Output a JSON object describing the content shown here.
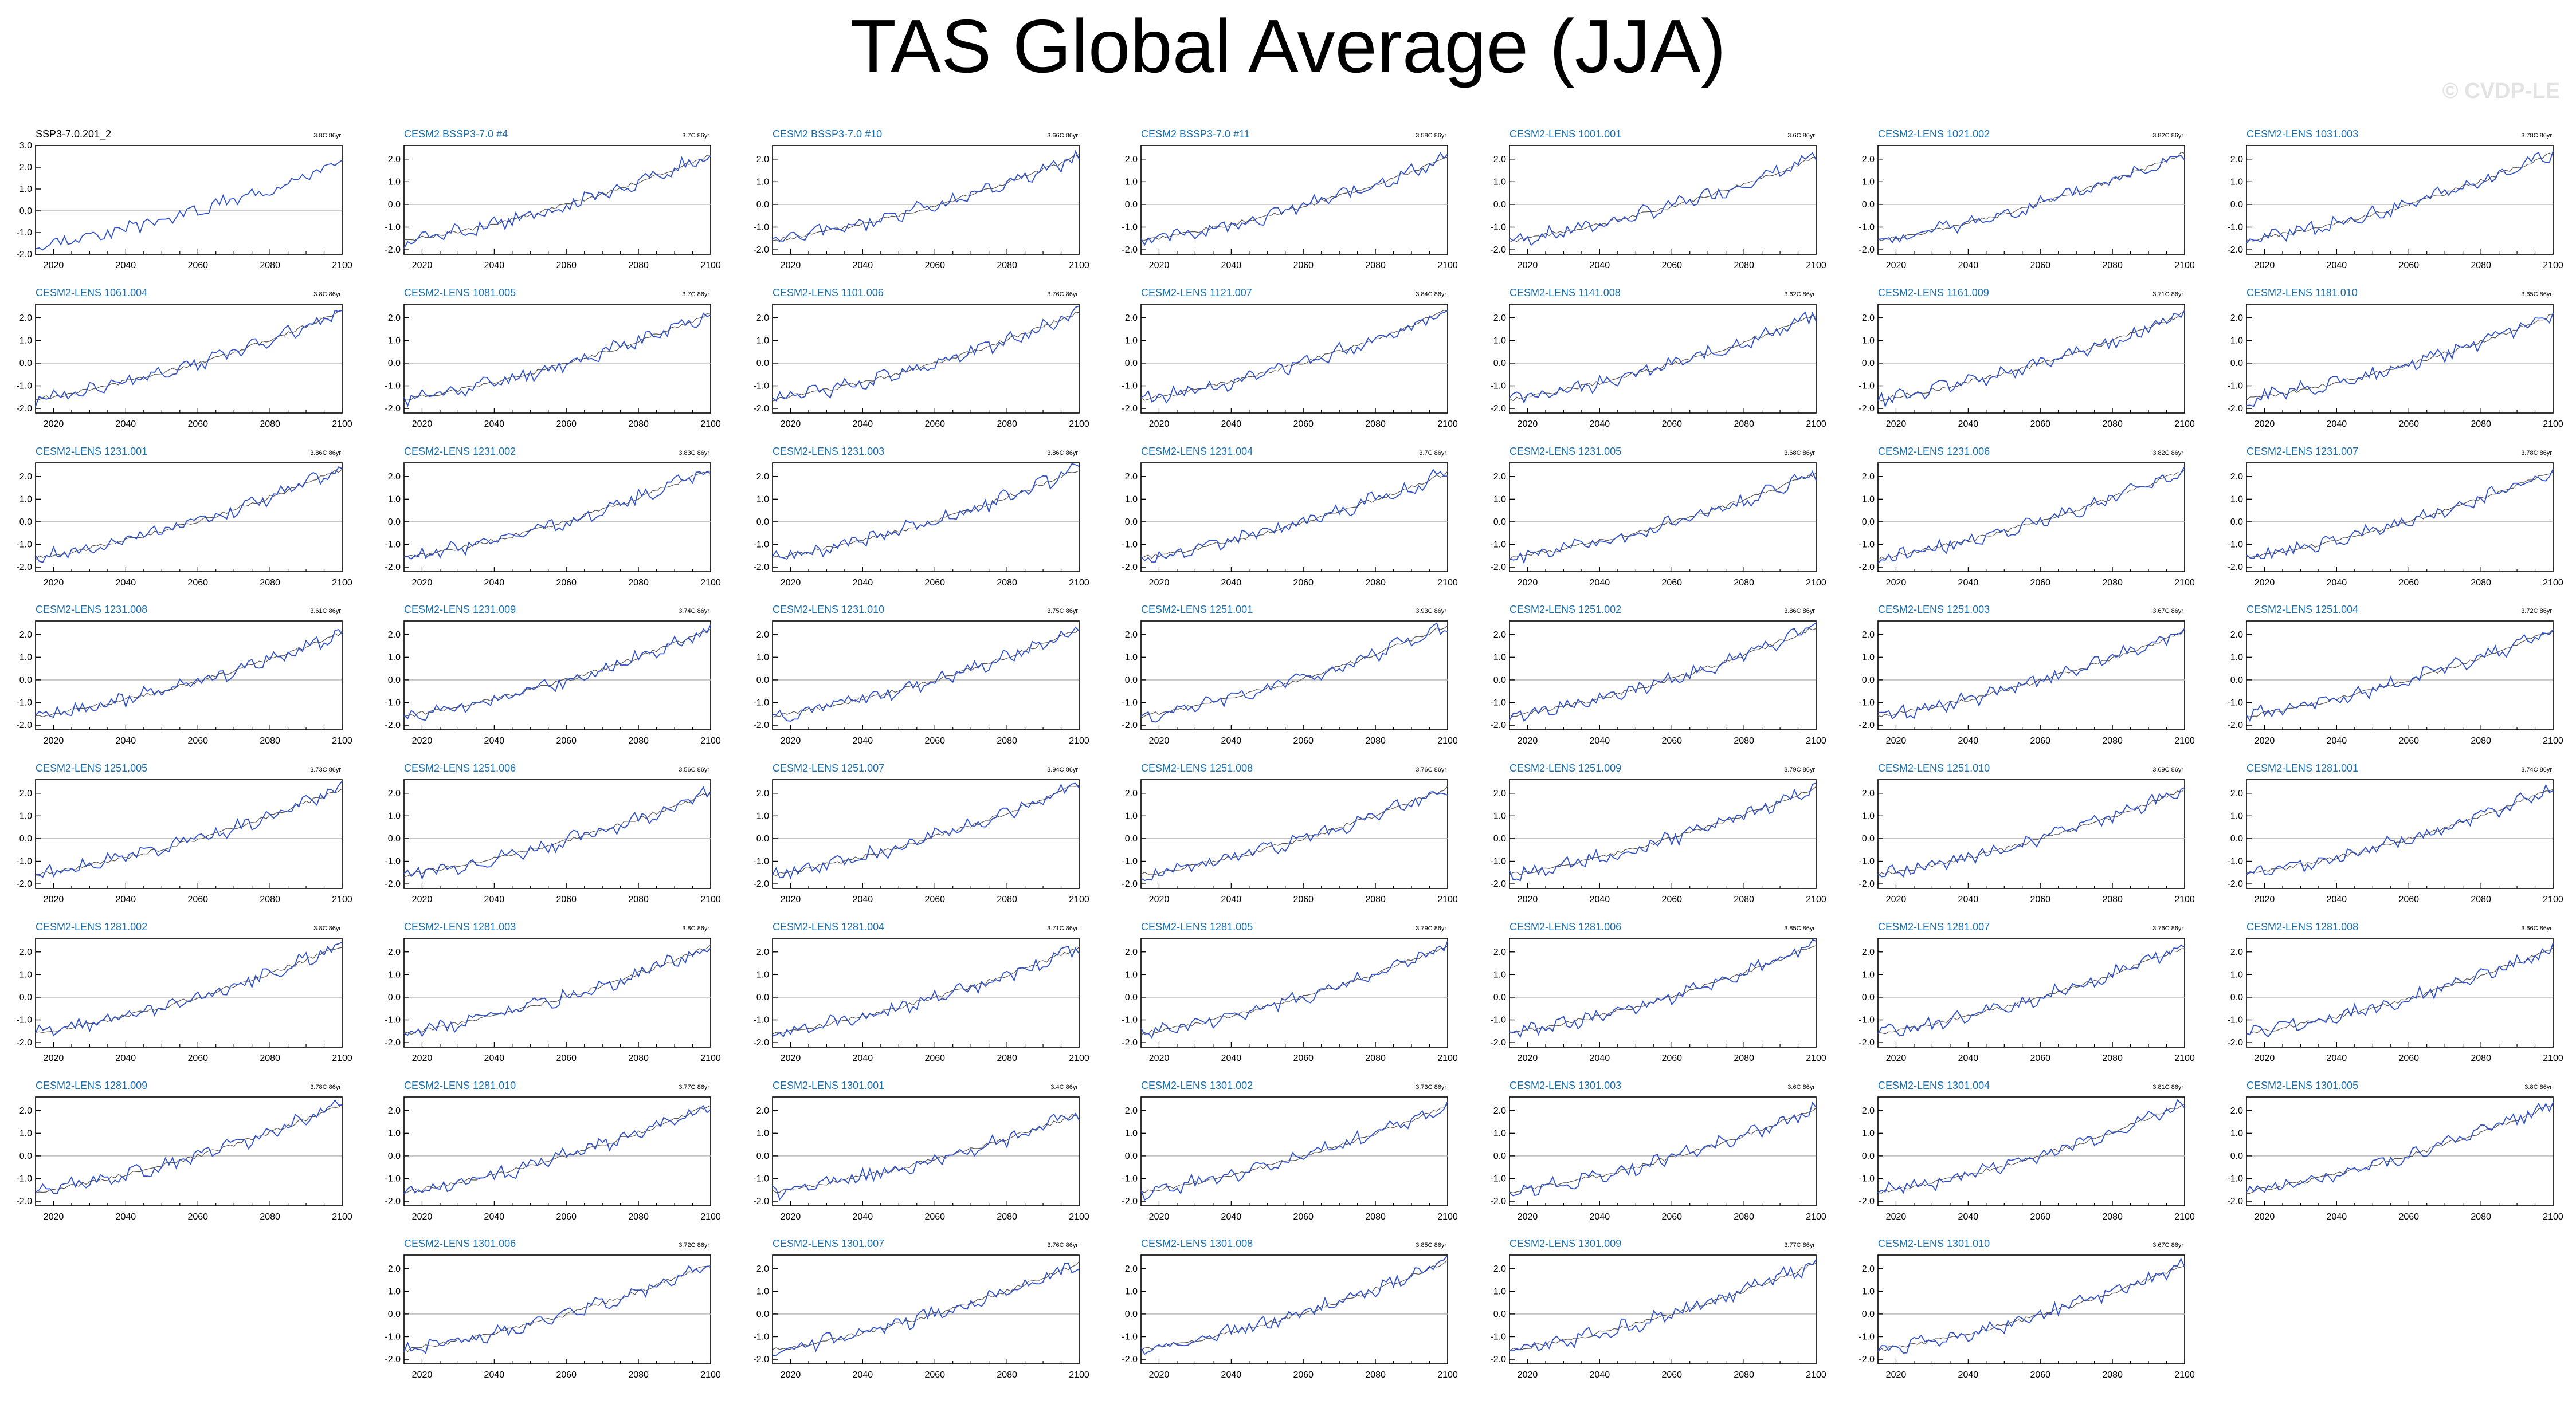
{
  "page": {
    "title": "TAS Global Average (JJA)",
    "watermark": "© CVDP-LE"
  },
  "colors": {
    "title_obs": "#000000",
    "title_model": "#1a6faf",
    "model_line": "#3050c8",
    "ensemble_mean_line": "#555555",
    "zero_line": "#b0b0b0"
  },
  "chart_data": {
    "type": "line",
    "layout": "panel grid",
    "xlim": [
      2015,
      2100
    ],
    "x_ticks": [
      "2020",
      "2040",
      "2060",
      "2080",
      "2100"
    ],
    "y_ticks_obs": [
      "3.0",
      "2.0",
      "1.0",
      "0.0",
      "-1.0",
      "-2.0"
    ],
    "y_ticks_model": [
      "2.0",
      "1.0",
      "0.0",
      "-1.0",
      "-2.0"
    ],
    "ylim_obs": [
      -2.0,
      3.0
    ],
    "ylim_model": [
      -2.2,
      2.6
    ],
    "panels": [
      {
        "title": "SSP3-7.0.201_2",
        "trend": "3.8C 86yr",
        "kind": "obs"
      },
      {
        "title": "CESM2 BSSP3-7.0 #4",
        "trend": "3.7C 86yr",
        "kind": "model"
      },
      {
        "title": "CESM2 BSSP3-7.0 #10",
        "trend": "3.66C 86yr",
        "kind": "model"
      },
      {
        "title": "CESM2 BSSP3-7.0 #11",
        "trend": "3.58C 86yr",
        "kind": "model"
      },
      {
        "title": "CESM2-LENS 1001.001",
        "trend": "3.6C 86yr",
        "kind": "model"
      },
      {
        "title": "CESM2-LENS 1021.002",
        "trend": "3.82C 86yr",
        "kind": "model"
      },
      {
        "title": "CESM2-LENS 1031.003",
        "trend": "3.78C 86yr",
        "kind": "model"
      },
      {
        "title": "CESM2-LENS 1061.004",
        "trend": "3.8C 86yr",
        "kind": "model"
      },
      {
        "title": "CESM2-LENS 1081.005",
        "trend": "3.7C 86yr",
        "kind": "model"
      },
      {
        "title": "CESM2-LENS 1101.006",
        "trend": "3.76C 86yr",
        "kind": "model"
      },
      {
        "title": "CESM2-LENS 1121.007",
        "trend": "3.84C 86yr",
        "kind": "model"
      },
      {
        "title": "CESM2-LENS 1141.008",
        "trend": "3.62C 86yr",
        "kind": "model"
      },
      {
        "title": "CESM2-LENS 1161.009",
        "trend": "3.71C 86yr",
        "kind": "model"
      },
      {
        "title": "CESM2-LENS 1181.010",
        "trend": "3.65C 86yr",
        "kind": "model"
      },
      {
        "title": "CESM2-LENS 1231.001",
        "trend": "3.86C 86yr",
        "kind": "model"
      },
      {
        "title": "CESM2-LENS 1231.002",
        "trend": "3.83C 86yr",
        "kind": "model"
      },
      {
        "title": "CESM2-LENS 1231.003",
        "trend": "3.86C 86yr",
        "kind": "model"
      },
      {
        "title": "CESM2-LENS 1231.004",
        "trend": "3.7C 86yr",
        "kind": "model"
      },
      {
        "title": "CESM2-LENS 1231.005",
        "trend": "3.68C 86yr",
        "kind": "model"
      },
      {
        "title": "CESM2-LENS 1231.006",
        "trend": "3.82C 86yr",
        "kind": "model"
      },
      {
        "title": "CESM2-LENS 1231.007",
        "trend": "3.78C 86yr",
        "kind": "model"
      },
      {
        "title": "CESM2-LENS 1231.008",
        "trend": "3.61C 86yr",
        "kind": "model"
      },
      {
        "title": "CESM2-LENS 1231.009",
        "trend": "3.74C 86yr",
        "kind": "model"
      },
      {
        "title": "CESM2-LENS 1231.010",
        "trend": "3.75C 86yr",
        "kind": "model"
      },
      {
        "title": "CESM2-LENS 1251.001",
        "trend": "3.93C 86yr",
        "kind": "model"
      },
      {
        "title": "CESM2-LENS 1251.002",
        "trend": "3.86C 86yr",
        "kind": "model"
      },
      {
        "title": "CESM2-LENS 1251.003",
        "trend": "3.67C 86yr",
        "kind": "model"
      },
      {
        "title": "CESM2-LENS 1251.004",
        "trend": "3.72C 86yr",
        "kind": "model"
      },
      {
        "title": "CESM2-LENS 1251.005",
        "trend": "3.73C 86yr",
        "kind": "model"
      },
      {
        "title": "CESM2-LENS 1251.006",
        "trend": "3.56C 86yr",
        "kind": "model"
      },
      {
        "title": "CESM2-LENS 1251.007",
        "trend": "3.94C 86yr",
        "kind": "model"
      },
      {
        "title": "CESM2-LENS 1251.008",
        "trend": "3.76C 86yr",
        "kind": "model"
      },
      {
        "title": "CESM2-LENS 1251.009",
        "trend": "3.79C 86yr",
        "kind": "model"
      },
      {
        "title": "CESM2-LENS 1251.010",
        "trend": "3.69C 86yr",
        "kind": "model"
      },
      {
        "title": "CESM2-LENS 1281.001",
        "trend": "3.74C 86yr",
        "kind": "model"
      },
      {
        "title": "CESM2-LENS 1281.002",
        "trend": "3.8C 86yr",
        "kind": "model"
      },
      {
        "title": "CESM2-LENS 1281.003",
        "trend": "3.8C 86yr",
        "kind": "model"
      },
      {
        "title": "CESM2-LENS 1281.004",
        "trend": "3.71C 86yr",
        "kind": "model"
      },
      {
        "title": "CESM2-LENS 1281.005",
        "trend": "3.79C 86yr",
        "kind": "model"
      },
      {
        "title": "CESM2-LENS 1281.006",
        "trend": "3.85C 86yr",
        "kind": "model"
      },
      {
        "title": "CESM2-LENS 1281.007",
        "trend": "3.76C 86yr",
        "kind": "model"
      },
      {
        "title": "CESM2-LENS 1281.008",
        "trend": "3.66C 86yr",
        "kind": "model"
      },
      {
        "title": "CESM2-LENS 1281.009",
        "trend": "3.78C 86yr",
        "kind": "model"
      },
      {
        "title": "CESM2-LENS 1281.010",
        "trend": "3.77C 86yr",
        "kind": "model"
      },
      {
        "title": "CESM2-LENS 1301.001",
        "trend": "3.4C 86yr",
        "kind": "model"
      },
      {
        "title": "CESM2-LENS 1301.002",
        "trend": "3.73C 86yr",
        "kind": "model"
      },
      {
        "title": "CESM2-LENS 1301.003",
        "trend": "3.6C 86yr",
        "kind": "model"
      },
      {
        "title": "CESM2-LENS 1301.004",
        "trend": "3.81C 86yr",
        "kind": "model"
      },
      {
        "title": "CESM2-LENS 1301.005",
        "trend": "3.8C 86yr",
        "kind": "model"
      },
      {
        "title": "CESM2-LENS 1301.006",
        "trend": "3.72C 86yr",
        "kind": "model"
      },
      {
        "title": "CESM2-LENS 1301.007",
        "trend": "3.76C 86yr",
        "kind": "model"
      },
      {
        "title": "CESM2-LENS 1301.008",
        "trend": "3.85C 86yr",
        "kind": "model"
      },
      {
        "title": "CESM2-LENS 1301.009",
        "trend": "3.77C 86yr",
        "kind": "model"
      },
      {
        "title": "CESM2-LENS 1301.010",
        "trend": "3.67C 86yr",
        "kind": "model"
      }
    ]
  }
}
